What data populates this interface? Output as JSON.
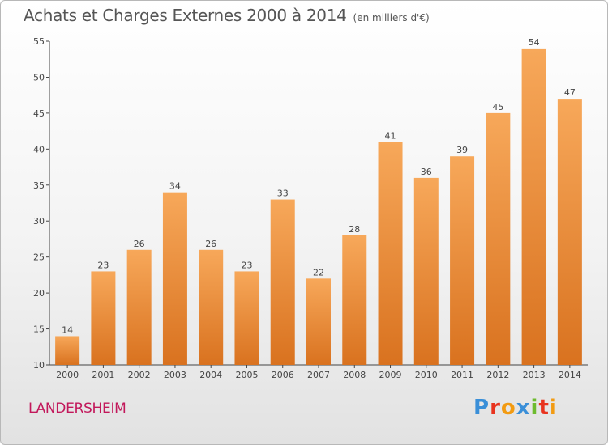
{
  "title": "Achats et Charges Externes 2000 à 2014",
  "unit": "(en milliers d'€)",
  "commune": "LANDERSHEIM",
  "logo": {
    "text": "Proxiti",
    "letters": [
      {
        "ch": "P",
        "color": "#3a8fd8"
      },
      {
        "ch": "r",
        "color": "#e8331e"
      },
      {
        "ch": "o",
        "color": "#f29b12"
      },
      {
        "ch": "x",
        "color": "#3a8fd8"
      },
      {
        "ch": "i",
        "color": "#6dbb2e"
      },
      {
        "ch": "t",
        "color": "#e8331e"
      },
      {
        "ch": "i",
        "color": "#f29b12"
      }
    ]
  },
  "colors": {
    "bar_light": "#f7a85a",
    "bar_dark": "#d9721f",
    "title": "#555555",
    "commune": "#c2185b"
  },
  "chart_data": {
    "type": "bar",
    "categories": [
      "2000",
      "2001",
      "2002",
      "2003",
      "2004",
      "2005",
      "2006",
      "2007",
      "2008",
      "2009",
      "2010",
      "2011",
      "2012",
      "2013",
      "2014"
    ],
    "values": [
      14,
      23,
      26,
      34,
      26,
      23,
      33,
      22,
      28,
      41,
      36,
      39,
      45,
      54,
      47
    ],
    "ylim": [
      10,
      55
    ],
    "yticks": [
      10,
      15,
      20,
      25,
      30,
      35,
      40,
      45,
      50,
      55
    ],
    "grid": false
  }
}
